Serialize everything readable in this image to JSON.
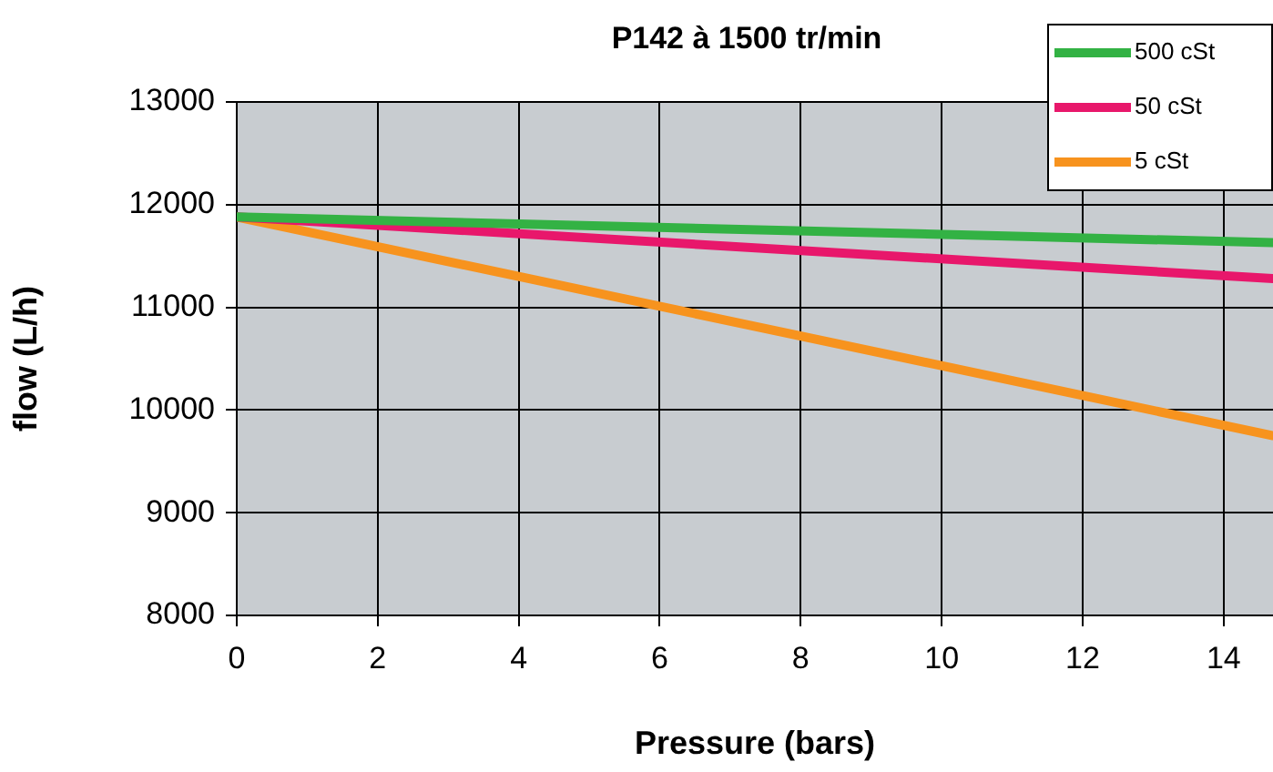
{
  "chart_data": {
    "type": "line",
    "title": "P142 à 1500 tr/min",
    "xlabel": "Pressure (bars)",
    "ylabel": "flow (L/h)",
    "x": [
      0,
      14.7
    ],
    "series": [
      {
        "name": "500 cSt",
        "color": "#33b244",
        "values": [
          11880,
          11630
        ]
      },
      {
        "name": "50 cSt",
        "color": "#e8176b",
        "values": [
          11880,
          11280
        ]
      },
      {
        "name": "5 cSt",
        "color": "#f7931e",
        "values": [
          11880,
          9750
        ]
      }
    ],
    "xlim": [
      0,
      14.7
    ],
    "xticks": [
      0,
      2,
      4,
      6,
      8,
      10,
      12,
      14
    ],
    "ylim": [
      8000,
      13000
    ],
    "yticks": [
      8000,
      9000,
      10000,
      11000,
      12000,
      13000
    ],
    "grid": true,
    "legend": "top right",
    "marker": "none",
    "line_style": "solid"
  }
}
